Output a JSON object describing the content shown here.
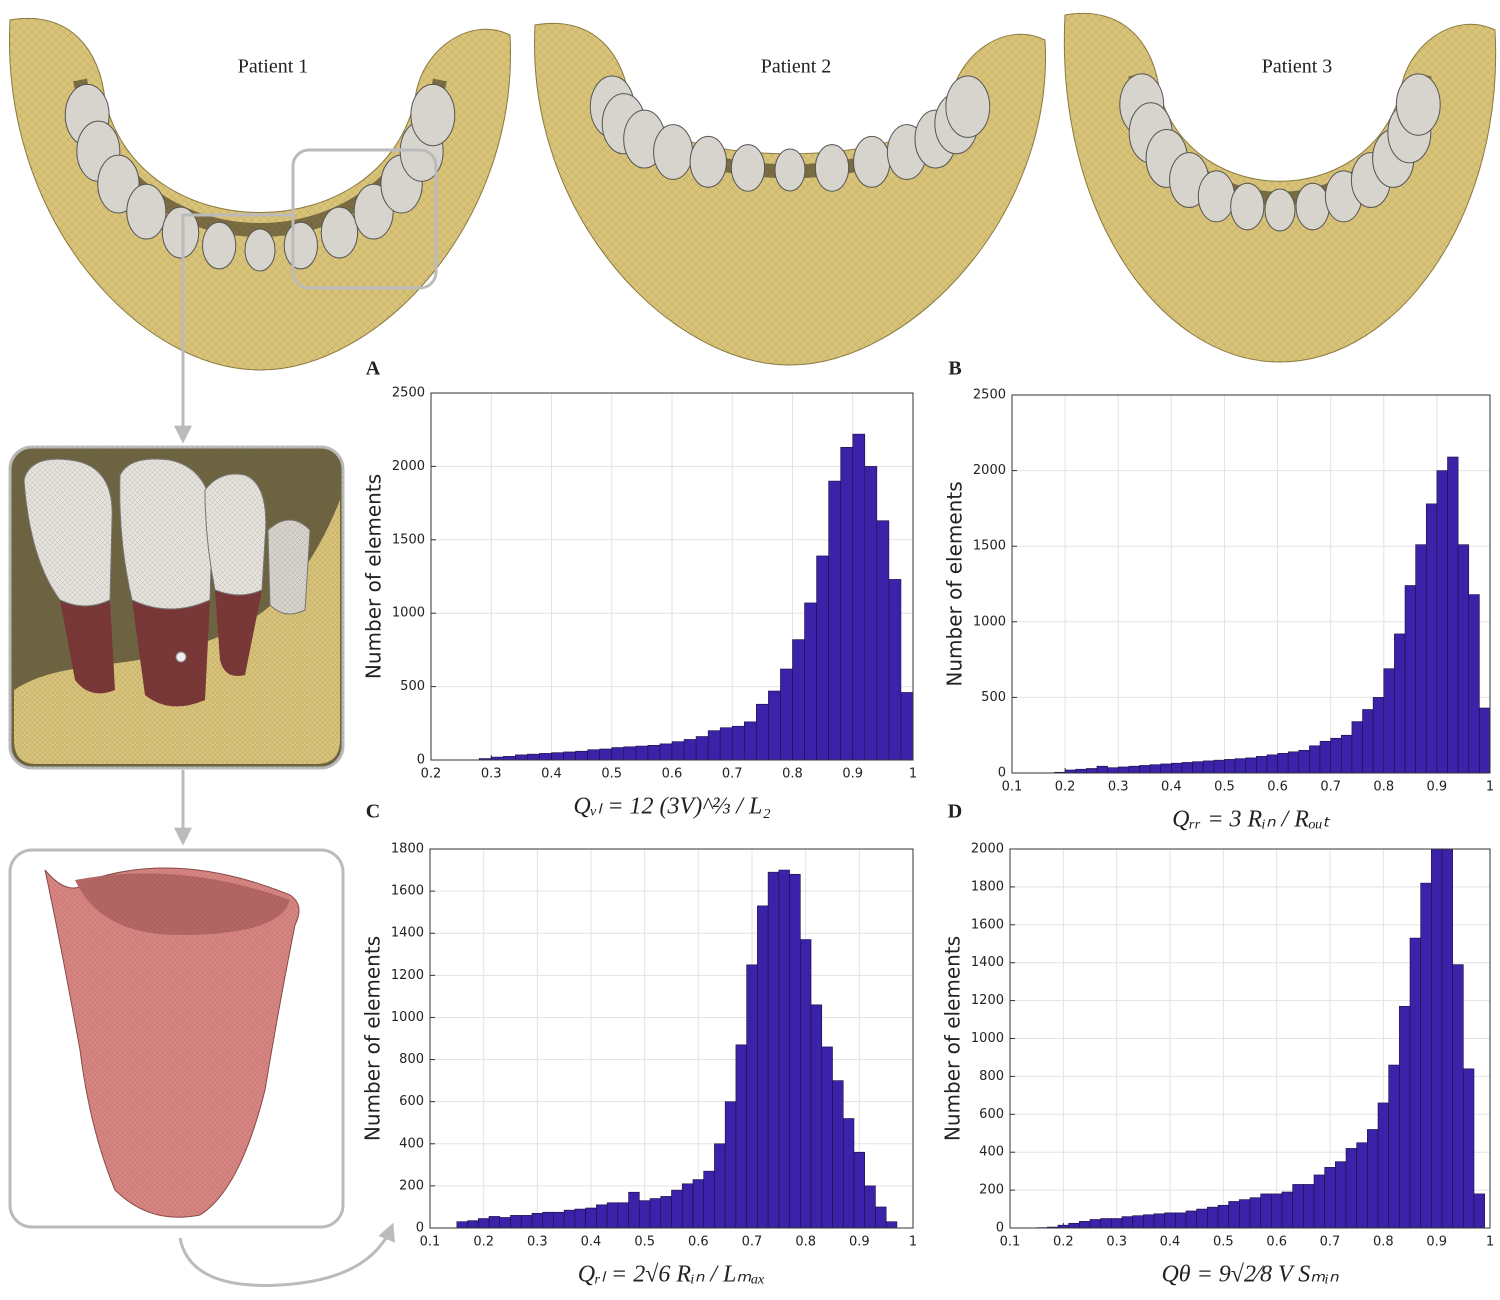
{
  "patients": [
    "Patient 1",
    "Patient 2",
    "Patient 3"
  ],
  "chart_data": [
    {
      "type": "histogram",
      "panel": "A",
      "ylabel": "Number of elements",
      "xlabel": "Qᵥₗ = 12 (3V)^⅔ / L₂",
      "color": "#3b22a8",
      "grid": true,
      "xlim": [
        0.2,
        1
      ],
      "ylim": [
        0,
        2500
      ],
      "xticks": [
        0.2,
        0.3,
        0.4,
        0.5,
        0.6,
        0.7,
        0.8,
        0.9,
        1
      ],
      "yticks": [
        0,
        500,
        1000,
        1500,
        2000,
        2500
      ],
      "bins": [
        0.28,
        0.3,
        0.32,
        0.34,
        0.36,
        0.38,
        0.4,
        0.42,
        0.44,
        0.46,
        0.48,
        0.5,
        0.52,
        0.54,
        0.56,
        0.58,
        0.6,
        0.62,
        0.64,
        0.66,
        0.68,
        0.7,
        0.72,
        0.74,
        0.76,
        0.78,
        0.8,
        0.82,
        0.84,
        0.86,
        0.88,
        0.9,
        0.92,
        0.94,
        0.96,
        0.98,
        1.0
      ],
      "values": [
        10,
        20,
        25,
        35,
        40,
        45,
        50,
        55,
        60,
        70,
        75,
        85,
        90,
        95,
        100,
        110,
        125,
        140,
        160,
        200,
        220,
        230,
        260,
        380,
        470,
        620,
        820,
        1070,
        1390,
        1900,
        2130,
        2220,
        2000,
        1630,
        1230,
        460
      ]
    },
    {
      "type": "histogram",
      "panel": "B",
      "ylabel": "Number of elements",
      "xlabel": "Qᵣᵣ = 3 Rᵢₙ / Rₒᵤₜ",
      "color": "#3b22a8",
      "grid": true,
      "xlim": [
        0.1,
        1
      ],
      "ylim": [
        0,
        2500
      ],
      "xticks": [
        0.1,
        0.2,
        0.3,
        0.4,
        0.5,
        0.6,
        0.7,
        0.8,
        0.9,
        1
      ],
      "yticks": [
        0,
        500,
        1000,
        1500,
        2000,
        2500
      ],
      "bins": [
        0.18,
        0.2,
        0.22,
        0.24,
        0.26,
        0.28,
        0.3,
        0.32,
        0.34,
        0.36,
        0.38,
        0.4,
        0.42,
        0.44,
        0.46,
        0.48,
        0.5,
        0.52,
        0.54,
        0.56,
        0.58,
        0.6,
        0.62,
        0.64,
        0.66,
        0.68,
        0.7,
        0.72,
        0.74,
        0.76,
        0.78,
        0.8,
        0.82,
        0.84,
        0.86,
        0.88,
        0.9,
        0.92,
        0.94,
        0.96,
        0.98,
        1.0
      ],
      "values": [
        5,
        20,
        25,
        30,
        45,
        35,
        40,
        45,
        50,
        55,
        60,
        65,
        70,
        75,
        80,
        85,
        90,
        95,
        100,
        110,
        120,
        130,
        140,
        150,
        180,
        210,
        230,
        250,
        340,
        420,
        500,
        690,
        920,
        1240,
        1510,
        1780,
        2000,
        2090,
        1510,
        1180,
        430
      ]
    },
    {
      "type": "histogram",
      "panel": "C",
      "ylabel": "Number of elements",
      "xlabel": "Qᵣₗ = 2√6 Rᵢₙ / Lₘₐₓ",
      "color": "#3b22a8",
      "grid": true,
      "xlim": [
        0.1,
        1
      ],
      "ylim": [
        0,
        1800
      ],
      "xticks": [
        0.1,
        0.2,
        0.3,
        0.4,
        0.5,
        0.6,
        0.7,
        0.8,
        0.9,
        1
      ],
      "yticks": [
        0,
        200,
        400,
        600,
        800,
        1000,
        1200,
        1400,
        1600,
        1800
      ],
      "bins": [
        0.15,
        0.17,
        0.19,
        0.21,
        0.23,
        0.25,
        0.27,
        0.29,
        0.31,
        0.33,
        0.35,
        0.37,
        0.39,
        0.41,
        0.43,
        0.45,
        0.47,
        0.49,
        0.51,
        0.53,
        0.55,
        0.57,
        0.59,
        0.61,
        0.63,
        0.65,
        0.67,
        0.69,
        0.71,
        0.73,
        0.75,
        0.77,
        0.79,
        0.81,
        0.83,
        0.85,
        0.87,
        0.89,
        0.91,
        0.93,
        0.95,
        0.97
      ],
      "values": [
        30,
        35,
        45,
        55,
        50,
        60,
        60,
        70,
        75,
        75,
        85,
        90,
        95,
        110,
        120,
        120,
        170,
        130,
        140,
        150,
        180,
        210,
        230,
        270,
        400,
        600,
        870,
        1250,
        1530,
        1690,
        1700,
        1680,
        1370,
        1060,
        860,
        700,
        520,
        360,
        200,
        100,
        30
      ]
    },
    {
      "type": "histogram",
      "panel": "D",
      "ylabel": "Number of elements",
      "xlabel": "Qθ = 9√2⁄8 V Sₘᵢₙ",
      "color": "#3b22a8",
      "grid": true,
      "xlim": [
        0.1,
        1
      ],
      "ylim": [
        0,
        2000
      ],
      "xticks": [
        0.1,
        0.2,
        0.3,
        0.4,
        0.5,
        0.6,
        0.7,
        0.8,
        0.9,
        1
      ],
      "yticks": [
        0,
        200,
        400,
        600,
        800,
        1000,
        1200,
        1400,
        1600,
        1800,
        2000
      ],
      "bins": [
        0.15,
        0.17,
        0.19,
        0.21,
        0.23,
        0.25,
        0.27,
        0.29,
        0.31,
        0.33,
        0.35,
        0.37,
        0.39,
        0.41,
        0.43,
        0.45,
        0.47,
        0.49,
        0.51,
        0.53,
        0.55,
        0.57,
        0.59,
        0.61,
        0.63,
        0.65,
        0.67,
        0.69,
        0.71,
        0.73,
        0.75,
        0.77,
        0.79,
        0.81,
        0.83,
        0.85,
        0.87,
        0.89,
        0.91,
        0.93,
        0.95,
        0.97,
        0.99
      ],
      "values": [
        2,
        5,
        15,
        25,
        35,
        45,
        50,
        50,
        60,
        65,
        70,
        75,
        80,
        80,
        90,
        100,
        110,
        120,
        140,
        150,
        160,
        180,
        180,
        190,
        230,
        230,
        280,
        320,
        350,
        420,
        450,
        520,
        660,
        860,
        1170,
        1530,
        1820,
        2000,
        2000,
        1390,
        840,
        180
      ]
    }
  ]
}
